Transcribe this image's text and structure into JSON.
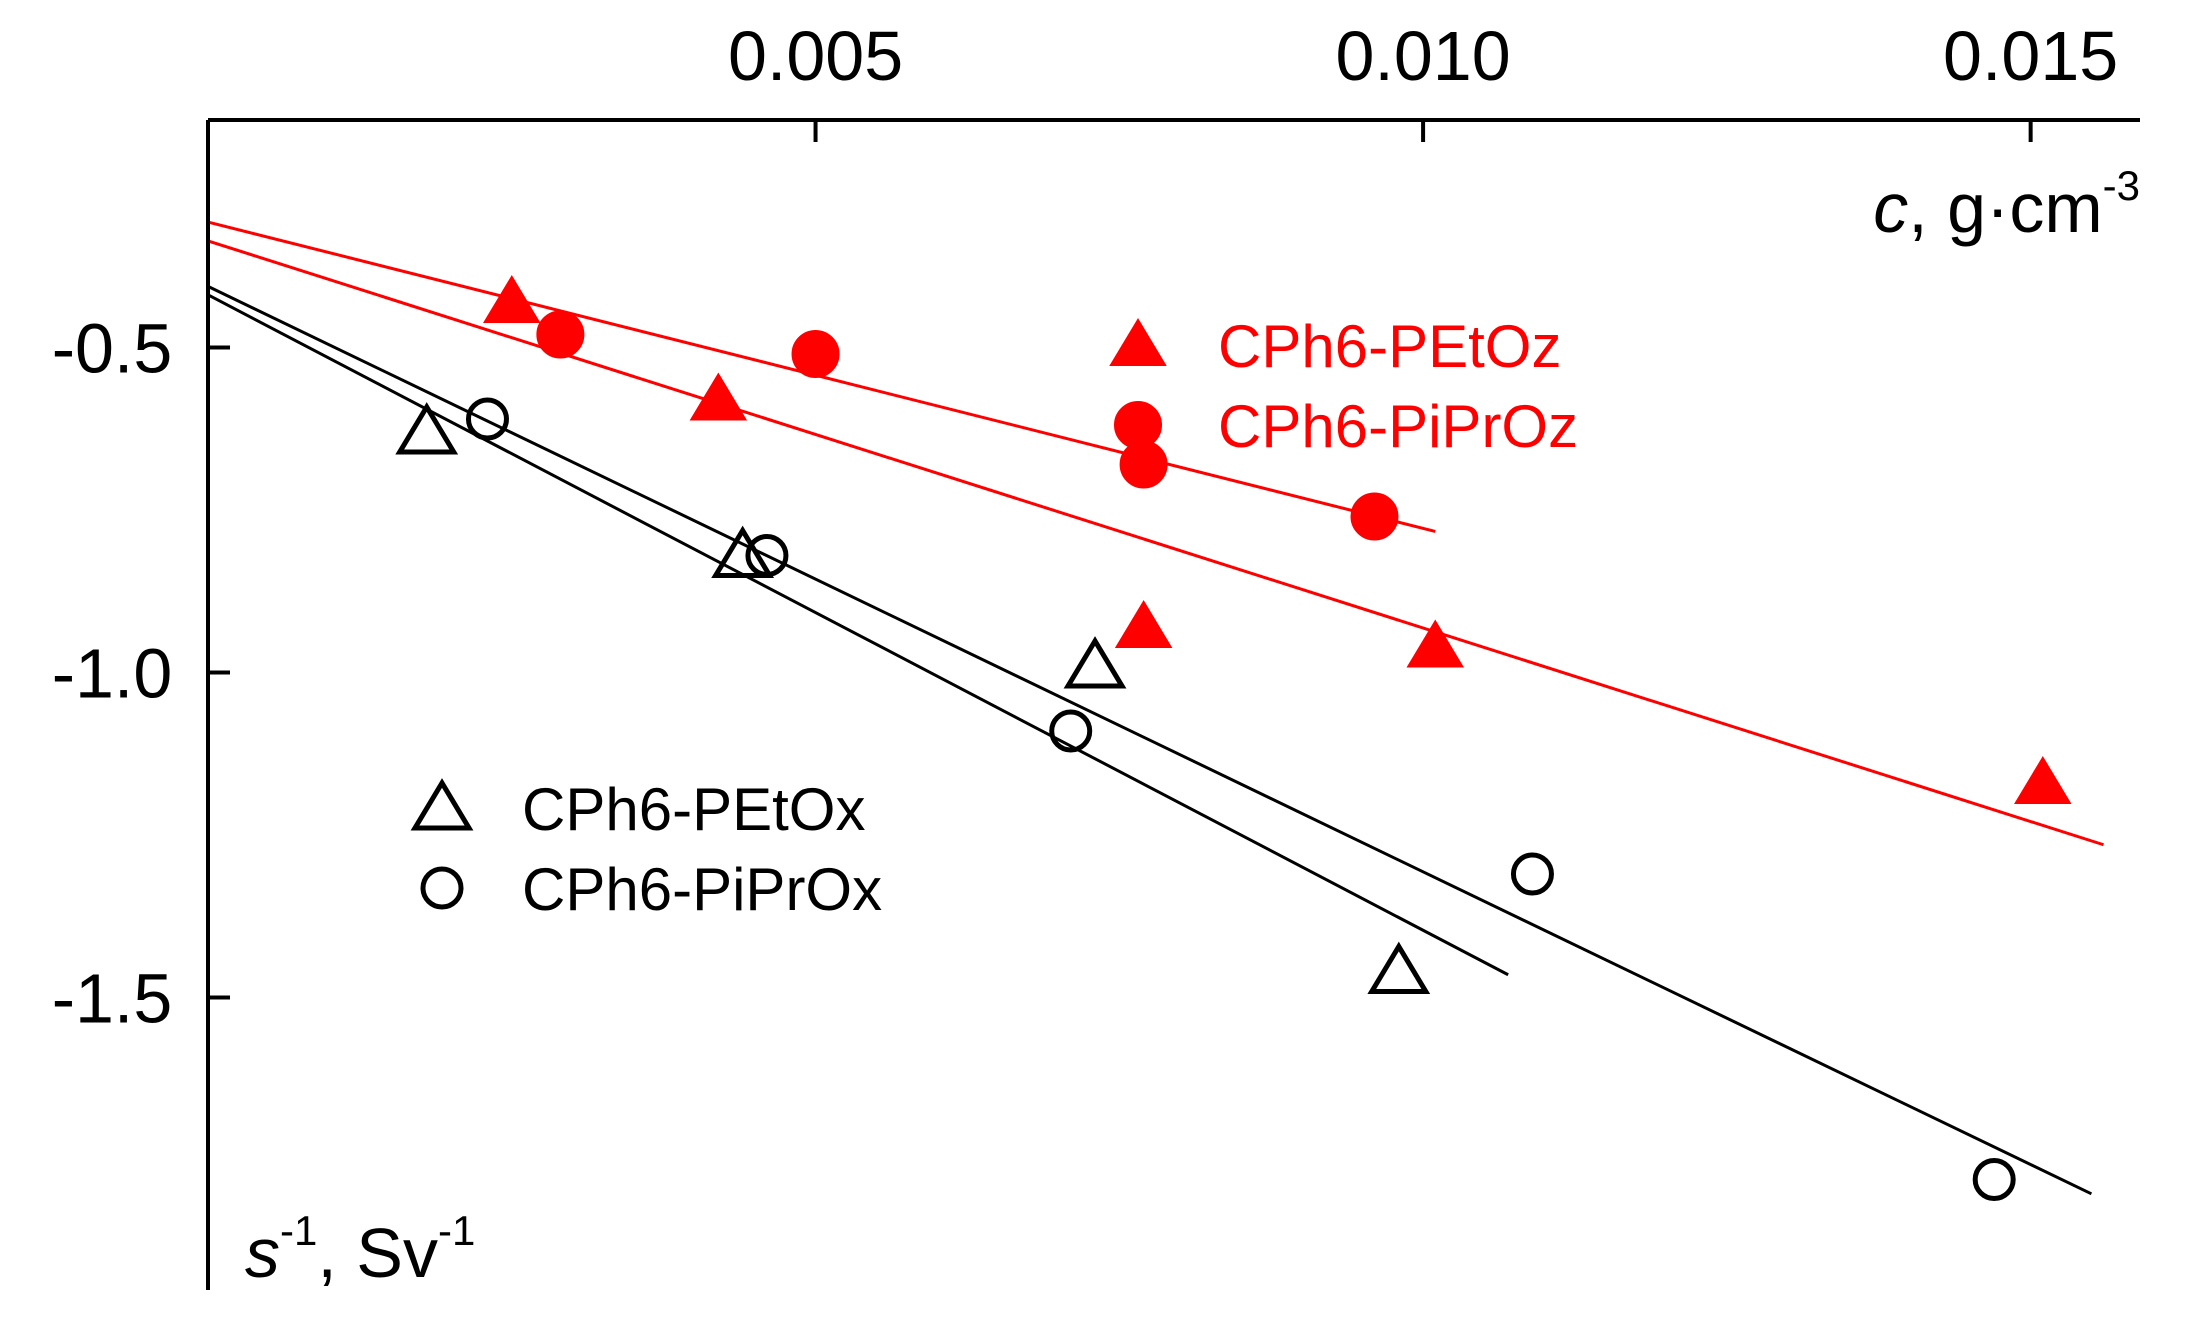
{
  "chart_data": {
    "type": "scatter",
    "title": "",
    "xlabel": {
      "italic": "c",
      "rest": ", g·cm",
      "sup": "-3"
    },
    "ylabel": {
      "italic": "s",
      "sup1": "-1",
      "mid": ", Sv",
      "sup2": "-1"
    },
    "x_axis_position": "top",
    "xlim": [
      0.0,
      0.0159
    ],
    "ylim": [
      -1.95,
      -0.15
    ],
    "x_ticks": [
      {
        "value": 0.005,
        "label": "0.005"
      },
      {
        "value": 0.01,
        "label": "0.010"
      },
      {
        "value": 0.015,
        "label": "0.015"
      }
    ],
    "y_ticks": [
      {
        "value": -0.5,
        "label": "-0.5"
      },
      {
        "value": -1.0,
        "label": "-1.0"
      },
      {
        "value": -1.5,
        "label": "-1.5"
      }
    ],
    "series": [
      {
        "name": "CPh6-PEtOz",
        "marker": "triangle",
        "filled": true,
        "color": "#ff0000",
        "points": [
          [
            0.0025,
            -0.43
          ],
          [
            0.0042,
            -0.58
          ],
          [
            0.0077,
            -0.93
          ],
          [
            0.0101,
            -0.96
          ],
          [
            0.0151,
            -1.17
          ]
        ],
        "fit": {
          "x": [
            0.0,
            0.0156
          ],
          "y": [
            -0.336,
            -1.265
          ]
        }
      },
      {
        "name": "CPh6-PiPrOz",
        "marker": "circle",
        "filled": true,
        "color": "#ff0000",
        "points": [
          [
            0.0029,
            -0.48
          ],
          [
            0.005,
            -0.51
          ],
          [
            0.0077,
            -0.68
          ],
          [
            0.0096,
            -0.76
          ]
        ],
        "fit": {
          "x": [
            0.0,
            0.0101
          ],
          "y": [
            -0.307,
            -0.783
          ]
        }
      },
      {
        "name": "CPh6-PEtOx",
        "marker": "triangle",
        "filled": false,
        "color": "#000000",
        "points": [
          [
            0.0018,
            -0.63
          ],
          [
            0.0044,
            -0.82
          ],
          [
            0.0073,
            -0.99
          ],
          [
            0.0098,
            -1.46
          ]
        ],
        "fit": {
          "x": [
            0.0,
            0.0107
          ],
          "y": [
            -0.419,
            -1.465
          ]
        }
      },
      {
        "name": "CPh6-PiPrOx",
        "marker": "circle",
        "filled": false,
        "color": "#000000",
        "points": [
          [
            0.0023,
            -0.61
          ],
          [
            0.0046,
            -0.82
          ],
          [
            0.0071,
            -1.09
          ],
          [
            0.0109,
            -1.31
          ],
          [
            0.0147,
            -1.78
          ]
        ],
        "fit": {
          "x": [
            0.0,
            0.0155
          ],
          "y": [
            -0.406,
            -1.802
          ]
        }
      }
    ],
    "legends": [
      {
        "placement": "top-center",
        "series": [
          "CPh6-PEtOz",
          "CPh6-PiPrOz"
        ]
      },
      {
        "placement": "middle-left",
        "series": [
          "CPh6-PEtOx",
          "CPh6-PiPrOx"
        ]
      }
    ]
  }
}
